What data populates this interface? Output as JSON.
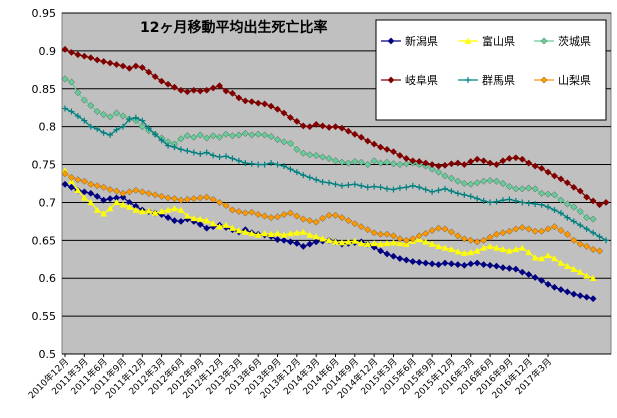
{
  "chart_data": {
    "type": "line",
    "title": "12ヶ月移動平均出生死亡比率",
    "xlabel": "",
    "ylabel": "",
    "ylim": [
      0.5,
      0.95
    ],
    "y_ticks": [
      "0.5",
      "0.55",
      "0.6",
      "0.65",
      "0.7",
      "0.75",
      "0.8",
      "0.85",
      "0.9",
      "0.95"
    ],
    "x_tick_labels": [
      "2010年12月",
      "2011年3月",
      "2011年6月",
      "2011年9月",
      "2011年12月",
      "2012年3月",
      "2012年6月",
      "2012年9月",
      "2012年12月",
      "2013年3月",
      "2013年6月",
      "2013年9月",
      "2013年12月",
      "2014年3月",
      "2014年6月",
      "2014年9月",
      "2014年12月",
      "2015年3月",
      "2015年6月",
      "2015年9月",
      "2015年12月",
      "2016年3月",
      "2016年6月",
      "2016年9月",
      "2016年12月",
      "2017年3月"
    ],
    "grid": true,
    "legend_position": "top-right",
    "plot_background": "#c0c0c0",
    "series": [
      {
        "name": "新潟県",
        "color": "#000080",
        "marker": "diamond",
        "values": [
          0.724,
          0.72,
          0.716,
          0.714,
          0.712,
          0.708,
          0.703,
          0.705,
          0.706,
          0.707,
          0.7,
          0.695,
          0.69,
          0.688,
          0.686,
          0.684,
          0.68,
          0.676,
          0.675,
          0.678,
          0.675,
          0.671,
          0.666,
          0.668,
          0.67,
          0.667,
          0.664,
          0.661,
          0.664,
          0.66,
          0.658,
          0.657,
          0.655,
          0.651,
          0.65,
          0.648,
          0.646,
          0.642,
          0.645,
          0.648,
          0.649,
          0.65,
          0.648,
          0.645,
          0.646,
          0.647,
          0.648,
          0.645,
          0.641,
          0.636,
          0.632,
          0.629,
          0.626,
          0.624,
          0.622,
          0.621,
          0.62,
          0.619,
          0.618,
          0.62,
          0.619,
          0.618,
          0.617,
          0.619,
          0.62,
          0.618,
          0.617,
          0.616,
          0.614,
          0.613,
          0.612,
          0.608,
          0.605,
          0.601,
          0.597,
          0.592,
          0.588,
          0.585,
          0.582,
          0.579,
          0.577,
          0.575,
          0.573
        ]
      },
      {
        "name": "富山県",
        "color": "#ffff00",
        "marker": "triangle",
        "values": [
          0.742,
          0.728,
          0.716,
          0.706,
          0.7,
          0.69,
          0.685,
          0.692,
          0.7,
          0.697,
          0.694,
          0.69,
          0.688,
          0.689,
          0.686,
          0.688,
          0.69,
          0.692,
          0.69,
          0.682,
          0.679,
          0.678,
          0.676,
          0.672,
          0.668,
          0.67,
          0.666,
          0.663,
          0.661,
          0.659,
          0.657,
          0.659,
          0.658,
          0.659,
          0.657,
          0.659,
          0.66,
          0.661,
          0.657,
          0.655,
          0.652,
          0.65,
          0.648,
          0.647,
          0.648,
          0.649,
          0.646,
          0.645,
          0.646,
          0.645,
          0.646,
          0.647,
          0.646,
          0.645,
          0.649,
          0.651,
          0.648,
          0.645,
          0.642,
          0.64,
          0.638,
          0.635,
          0.633,
          0.634,
          0.636,
          0.64,
          0.642,
          0.64,
          0.638,
          0.636,
          0.638,
          0.64,
          0.634,
          0.627,
          0.626,
          0.63,
          0.626,
          0.62,
          0.616,
          0.612,
          0.608,
          0.603,
          0.6
        ]
      },
      {
        "name": "茨城県",
        "color": "#66cc99",
        "marker": "diamond",
        "values": [
          0.863,
          0.859,
          0.845,
          0.835,
          0.828,
          0.82,
          0.816,
          0.813,
          0.818,
          0.814,
          0.81,
          0.808,
          0.8,
          0.795,
          0.79,
          0.785,
          0.78,
          0.777,
          0.784,
          0.788,
          0.786,
          0.789,
          0.785,
          0.788,
          0.786,
          0.79,
          0.788,
          0.789,
          0.791,
          0.789,
          0.79,
          0.789,
          0.787,
          0.783,
          0.78,
          0.778,
          0.77,
          0.765,
          0.763,
          0.762,
          0.76,
          0.758,
          0.755,
          0.753,
          0.752,
          0.754,
          0.753,
          0.75,
          0.755,
          0.752,
          0.753,
          0.751,
          0.75,
          0.751,
          0.752,
          0.75,
          0.748,
          0.744,
          0.74,
          0.735,
          0.732,
          0.728,
          0.725,
          0.724,
          0.726,
          0.728,
          0.729,
          0.728,
          0.725,
          0.721,
          0.718,
          0.718,
          0.719,
          0.718,
          0.712,
          0.711,
          0.71,
          0.703,
          0.698,
          0.694,
          0.688,
          0.68,
          0.678
        ]
      },
      {
        "name": "岐阜県",
        "color": "#800000",
        "marker": "diamond",
        "values": [
          0.902,
          0.898,
          0.895,
          0.893,
          0.891,
          0.888,
          0.886,
          0.884,
          0.882,
          0.88,
          0.877,
          0.88,
          0.878,
          0.872,
          0.866,
          0.86,
          0.856,
          0.852,
          0.848,
          0.846,
          0.848,
          0.847,
          0.848,
          0.851,
          0.854,
          0.847,
          0.844,
          0.838,
          0.834,
          0.833,
          0.831,
          0.83,
          0.827,
          0.823,
          0.818,
          0.812,
          0.807,
          0.801,
          0.8,
          0.803,
          0.801,
          0.799,
          0.8,
          0.798,
          0.794,
          0.79,
          0.786,
          0.781,
          0.777,
          0.773,
          0.77,
          0.767,
          0.762,
          0.758,
          0.755,
          0.754,
          0.752,
          0.75,
          0.748,
          0.749,
          0.751,
          0.752,
          0.75,
          0.754,
          0.757,
          0.755,
          0.752,
          0.75,
          0.755,
          0.758,
          0.759,
          0.757,
          0.752,
          0.748,
          0.745,
          0.74,
          0.735,
          0.731,
          0.726,
          0.72,
          0.715,
          0.707,
          0.702,
          0.697,
          0.7
        ]
      },
      {
        "name": "群馬県",
        "color": "#008080",
        "marker": "plus",
        "values": [
          0.824,
          0.82,
          0.814,
          0.808,
          0.8,
          0.797,
          0.792,
          0.789,
          0.796,
          0.8,
          0.81,
          0.812,
          0.808,
          0.798,
          0.79,
          0.782,
          0.775,
          0.773,
          0.77,
          0.768,
          0.766,
          0.764,
          0.766,
          0.762,
          0.76,
          0.761,
          0.758,
          0.755,
          0.752,
          0.751,
          0.75,
          0.75,
          0.752,
          0.75,
          0.748,
          0.744,
          0.74,
          0.736,
          0.733,
          0.73,
          0.727,
          0.726,
          0.724,
          0.722,
          0.723,
          0.724,
          0.722,
          0.72,
          0.721,
          0.72,
          0.718,
          0.717,
          0.719,
          0.72,
          0.722,
          0.72,
          0.717,
          0.714,
          0.716,
          0.718,
          0.715,
          0.712,
          0.71,
          0.708,
          0.705,
          0.702,
          0.7,
          0.701,
          0.703,
          0.704,
          0.702,
          0.7,
          0.699,
          0.698,
          0.697,
          0.694,
          0.69,
          0.686,
          0.68,
          0.675,
          0.67,
          0.665,
          0.66,
          0.655,
          0.65
        ]
      },
      {
        "name": "山梨県",
        "color": "#ff9900",
        "marker": "diamond",
        "values": [
          0.738,
          0.733,
          0.73,
          0.728,
          0.724,
          0.722,
          0.72,
          0.717,
          0.715,
          0.712,
          0.714,
          0.716,
          0.714,
          0.712,
          0.71,
          0.708,
          0.706,
          0.705,
          0.703,
          0.704,
          0.705,
          0.706,
          0.707,
          0.704,
          0.7,
          0.696,
          0.69,
          0.688,
          0.686,
          0.687,
          0.684,
          0.682,
          0.68,
          0.681,
          0.684,
          0.686,
          0.682,
          0.678,
          0.676,
          0.674,
          0.679,
          0.683,
          0.683,
          0.68,
          0.676,
          0.672,
          0.668,
          0.664,
          0.66,
          0.658,
          0.658,
          0.656,
          0.652,
          0.65,
          0.652,
          0.656,
          0.659,
          0.663,
          0.666,
          0.665,
          0.661,
          0.656,
          0.652,
          0.65,
          0.648,
          0.65,
          0.654,
          0.658,
          0.66,
          0.662,
          0.665,
          0.667,
          0.665,
          0.662,
          0.662,
          0.665,
          0.668,
          0.663,
          0.658,
          0.65,
          0.645,
          0.642,
          0.638,
          0.636
        ]
      }
    ]
  }
}
